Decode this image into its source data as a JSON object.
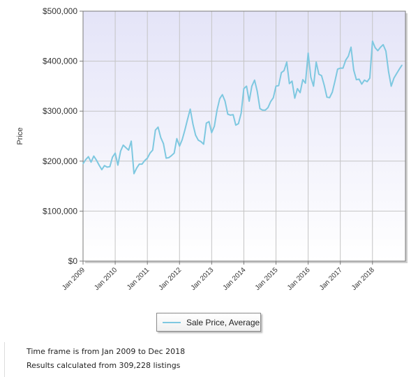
{
  "chart_data": {
    "type": "line",
    "ylabel": "Price",
    "xlabel": "",
    "ylim": [
      0,
      500000
    ],
    "yticks": [
      0,
      100000,
      200000,
      300000,
      400000,
      500000
    ],
    "ytick_labels": [
      "$0",
      "$100,000",
      "$200,000",
      "$300,000",
      "$400,000",
      "$500,000"
    ],
    "xticks": [
      "2009-01",
      "2010-01",
      "2011-01",
      "2012-01",
      "2013-01",
      "2014-01",
      "2015-01",
      "2016-01",
      "2017-01",
      "2018-01"
    ],
    "xtick_labels": [
      "Jan 2009",
      "Jan 2010",
      "Jan 2011",
      "Jan 2012",
      "Jan 2013",
      "Jan 2014",
      "Jan 2015",
      "Jan 2016",
      "Jan 2017",
      "Jan 2018"
    ],
    "x_range": [
      "2009-01",
      "2018-12"
    ],
    "grid": true,
    "legend_position": "bottom-center",
    "colors": {
      "line": "#7ec8e0",
      "plot_bg_top": "#e4e4f8",
      "plot_bg_bottom": "#ffffff",
      "grid": "#c4c4c4"
    },
    "series": [
      {
        "name": "Sale Price, Average",
        "x": [
          "2009-01",
          "2009-02",
          "2009-03",
          "2009-04",
          "2009-05",
          "2009-06",
          "2009-07",
          "2009-08",
          "2009-09",
          "2009-10",
          "2009-11",
          "2009-12",
          "2010-01",
          "2010-02",
          "2010-03",
          "2010-04",
          "2010-05",
          "2010-06",
          "2010-07",
          "2010-08",
          "2010-09",
          "2010-10",
          "2010-11",
          "2010-12",
          "2011-01",
          "2011-02",
          "2011-03",
          "2011-04",
          "2011-05",
          "2011-06",
          "2011-07",
          "2011-08",
          "2011-09",
          "2011-10",
          "2011-11",
          "2011-12",
          "2012-01",
          "2012-02",
          "2012-03",
          "2012-04",
          "2012-05",
          "2012-06",
          "2012-07",
          "2012-08",
          "2012-09",
          "2012-10",
          "2012-11",
          "2012-12",
          "2013-01",
          "2013-02",
          "2013-03",
          "2013-04",
          "2013-05",
          "2013-06",
          "2013-07",
          "2013-08",
          "2013-09",
          "2013-10",
          "2013-11",
          "2013-12",
          "2014-01",
          "2014-02",
          "2014-03",
          "2014-04",
          "2014-05",
          "2014-06",
          "2014-07",
          "2014-08",
          "2014-09",
          "2014-10",
          "2014-11",
          "2014-12",
          "2015-01",
          "2015-02",
          "2015-03",
          "2015-04",
          "2015-05",
          "2015-06",
          "2015-07",
          "2015-08",
          "2015-09",
          "2015-10",
          "2015-11",
          "2015-12",
          "2016-01",
          "2016-02",
          "2016-03",
          "2016-04",
          "2016-05",
          "2016-06",
          "2016-07",
          "2016-08",
          "2016-09",
          "2016-10",
          "2016-11",
          "2016-12",
          "2017-01",
          "2017-02",
          "2017-03",
          "2017-04",
          "2017-05",
          "2017-06",
          "2017-07",
          "2017-08",
          "2017-09",
          "2017-10",
          "2017-11",
          "2017-12",
          "2018-01",
          "2018-02",
          "2018-03",
          "2018-04",
          "2018-05",
          "2018-06",
          "2018-07",
          "2018-08",
          "2018-09",
          "2018-10",
          "2018-11",
          "2018-12"
        ],
        "values": [
          195000,
          203000,
          209000,
          198000,
          210000,
          202000,
          192000,
          183000,
          191000,
          188000,
          189000,
          208000,
          216000,
          192000,
          220000,
          232000,
          227000,
          222000,
          240000,
          175000,
          186000,
          194000,
          194000,
          201000,
          206000,
          216000,
          222000,
          262000,
          268000,
          247000,
          235000,
          206000,
          207000,
          211000,
          216000,
          245000,
          230000,
          243000,
          262000,
          284000,
          304000,
          274000,
          252000,
          242000,
          239000,
          234000,
          276000,
          279000,
          257000,
          270000,
          302000,
          325000,
          333000,
          320000,
          294000,
          292000,
          293000,
          272000,
          275000,
          296000,
          345000,
          350000,
          320000,
          350000,
          362000,
          340000,
          305000,
          302000,
          302000,
          307000,
          319000,
          327000,
          350000,
          351000,
          377000,
          381000,
          398000,
          355000,
          360000,
          326000,
          345000,
          337000,
          363000,
          356000,
          416000,
          368000,
          350000,
          398000,
          374000,
          371000,
          352000,
          328000,
          327000,
          338000,
          360000,
          384000,
          386000,
          386000,
          402000,
          410000,
          428000,
          382000,
          363000,
          364000,
          354000,
          362000,
          359000,
          366000,
          440000,
          427000,
          421000,
          428000,
          433000,
          420000,
          379000,
          350000,
          366000,
          375000,
          384000,
          392000
        ]
      }
    ]
  },
  "legend": {
    "items": [
      "Sale Price, Average"
    ]
  },
  "footer": {
    "line1": "Time frame is from Jan 2009 to Dec 2018",
    "line2": "Results calculated from 309,228 listings"
  }
}
